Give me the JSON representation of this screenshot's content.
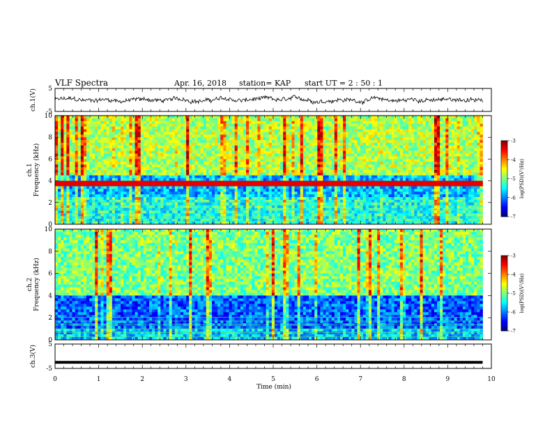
{
  "header": {
    "title": "VLF Spectra",
    "date": "Apr. 16, 2018",
    "station": "station= KAP",
    "start": "start  UT =   2 : 50 : 1"
  },
  "colorbar": {
    "label": "log(PSD)(V²/Hz)",
    "ticks": [
      "-3",
      "-4",
      "-5",
      "-6",
      "-7"
    ]
  },
  "chart_data": [
    {
      "type": "line",
      "name": "ch1-voltage",
      "ylabel": "ch.1(V)",
      "ylim": [
        -5,
        5
      ],
      "yticks": [
        "5",
        "-5"
      ],
      "xlim": [
        0,
        10
      ],
      "description_values": {
        "mean": 0,
        "approx_amplitude": 1.7
      },
      "color": "#000000"
    },
    {
      "type": "heatmap",
      "name": "ch1-spectrogram",
      "ylabel": "ch.1\nFrequency (kHz)",
      "ylim": [
        0,
        10
      ],
      "yticks": [
        "10",
        "8",
        "6",
        "4",
        "2",
        "0"
      ],
      "xlim": [
        0,
        10
      ],
      "data_end_min": 9.8,
      "value_range": [
        -7,
        -3
      ],
      "strong_band_khz": 3.75
    },
    {
      "type": "heatmap",
      "name": "ch2-spectrogram",
      "ylabel": "ch.2\nFrequency (kHz)",
      "ylim": [
        0,
        10
      ],
      "yticks": [
        "10",
        "8",
        "6",
        "4",
        "2",
        "0"
      ],
      "xlim": [
        0,
        10
      ],
      "data_end_min": 9.8,
      "value_range": [
        -7,
        -3
      ]
    },
    {
      "type": "line",
      "name": "ch3-voltage",
      "ylabel": "ch.3(V)",
      "ylim": [
        -5,
        5
      ],
      "yticks": [
        "5",
        "-5"
      ],
      "xlim": [
        0,
        10
      ],
      "constant_value": -2.5,
      "data_end_min": 9.8,
      "color": "#000000"
    }
  ],
  "xaxis": {
    "label": "Time (min)",
    "ticks": [
      "0",
      "1",
      "2",
      "3",
      "4",
      "5",
      "6",
      "7",
      "8",
      "9",
      "10"
    ]
  }
}
